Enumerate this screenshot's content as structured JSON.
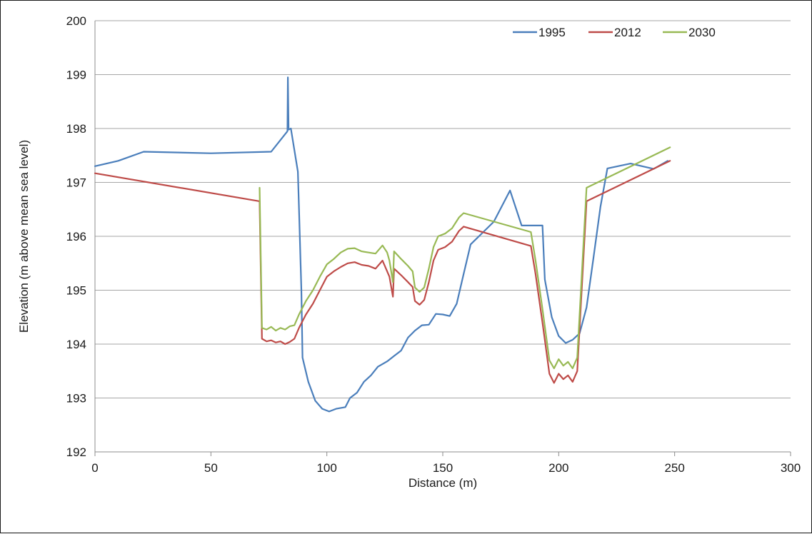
{
  "chart_data": {
    "type": "line",
    "xlabel": "Distance (m)",
    "ylabel": "Elevation (m above mean sea level)",
    "xlim": [
      0,
      300
    ],
    "ylim": [
      192,
      200
    ],
    "x_ticks": [
      0,
      50,
      100,
      150,
      200,
      250,
      300
    ],
    "y_ticks": [
      192,
      193,
      194,
      195,
      196,
      197,
      198,
      199,
      200
    ],
    "grid": "horizontal",
    "legend_position": "top-right",
    "series": [
      {
        "name": "1995",
        "color": "#4a7ebb",
        "points": [
          [
            0,
            197.3
          ],
          [
            10,
            197.4
          ],
          [
            21,
            197.57
          ],
          [
            50,
            197.54
          ],
          [
            76,
            197.57
          ],
          [
            83,
            197.95
          ],
          [
            83.2,
            198.95
          ],
          [
            83.5,
            197.98
          ],
          [
            84.5,
            198.0
          ],
          [
            86,
            197.6
          ],
          [
            87.5,
            197.2
          ],
          [
            88,
            196.5
          ],
          [
            89,
            195.0
          ],
          [
            89.5,
            193.75
          ],
          [
            92,
            193.3
          ],
          [
            95,
            192.95
          ],
          [
            98,
            192.8
          ],
          [
            101,
            192.75
          ],
          [
            104,
            192.8
          ],
          [
            108,
            192.83
          ],
          [
            110,
            193.0
          ],
          [
            113,
            193.1
          ],
          [
            116,
            193.3
          ],
          [
            119,
            193.42
          ],
          [
            122,
            193.58
          ],
          [
            126,
            193.68
          ],
          [
            129,
            193.78
          ],
          [
            132,
            193.88
          ],
          [
            135,
            194.12
          ],
          [
            138,
            194.25
          ],
          [
            141,
            194.35
          ],
          [
            144,
            194.36
          ],
          [
            147,
            194.56
          ],
          [
            150,
            194.55
          ],
          [
            153,
            194.52
          ],
          [
            156,
            194.75
          ],
          [
            159,
            195.3
          ],
          [
            162,
            195.85
          ],
          [
            167,
            196.06
          ],
          [
            172,
            196.27
          ],
          [
            179,
            196.85
          ],
          [
            184,
            196.2
          ],
          [
            193,
            196.2
          ],
          [
            194,
            195.2
          ],
          [
            197,
            194.5
          ],
          [
            200,
            194.15
          ],
          [
            203,
            194.02
          ],
          [
            206,
            194.08
          ],
          [
            209,
            194.2
          ],
          [
            212,
            194.68
          ],
          [
            215,
            195.6
          ],
          [
            218,
            196.55
          ],
          [
            221,
            197.26
          ],
          [
            231,
            197.35
          ],
          [
            241,
            197.25
          ],
          [
            247,
            197.4
          ]
        ]
      },
      {
        "name": "2012",
        "color": "#be4b48",
        "points": [
          [
            0,
            197.17
          ],
          [
            71,
            196.65
          ],
          [
            72,
            194.1
          ],
          [
            74,
            194.05
          ],
          [
            76,
            194.07
          ],
          [
            78,
            194.03
          ],
          [
            80,
            194.05
          ],
          [
            82,
            194.0
          ],
          [
            84,
            194.04
          ],
          [
            86,
            194.1
          ],
          [
            88,
            194.3
          ],
          [
            91,
            194.55
          ],
          [
            94,
            194.75
          ],
          [
            97,
            195.0
          ],
          [
            100,
            195.25
          ],
          [
            103,
            195.35
          ],
          [
            106,
            195.43
          ],
          [
            109,
            195.5
          ],
          [
            112,
            195.52
          ],
          [
            115,
            195.47
          ],
          [
            118,
            195.45
          ],
          [
            121,
            195.4
          ],
          [
            124,
            195.55
          ],
          [
            126,
            195.35
          ],
          [
            127,
            195.25
          ],
          [
            128.5,
            194.88
          ],
          [
            129,
            195.4
          ],
          [
            132,
            195.28
          ],
          [
            135,
            195.15
          ],
          [
            137,
            195.06
          ],
          [
            138,
            194.8
          ],
          [
            140,
            194.73
          ],
          [
            142,
            194.82
          ],
          [
            144,
            195.15
          ],
          [
            146,
            195.55
          ],
          [
            148,
            195.75
          ],
          [
            151,
            195.8
          ],
          [
            154,
            195.9
          ],
          [
            157,
            196.1
          ],
          [
            159,
            196.18
          ],
          [
            188,
            195.82
          ],
          [
            190,
            195.3
          ],
          [
            193,
            194.4
          ],
          [
            196,
            193.45
          ],
          [
            198,
            193.28
          ],
          [
            200,
            193.45
          ],
          [
            202,
            193.35
          ],
          [
            204,
            193.42
          ],
          [
            206,
            193.3
          ],
          [
            208,
            193.5
          ],
          [
            212,
            196.65
          ],
          [
            248,
            197.4
          ]
        ]
      },
      {
        "name": "2030",
        "color": "#98b954",
        "points": [
          [
            71,
            196.9
          ],
          [
            72,
            194.3
          ],
          [
            74,
            194.27
          ],
          [
            76,
            194.32
          ],
          [
            78,
            194.25
          ],
          [
            80,
            194.3
          ],
          [
            82,
            194.27
          ],
          [
            84,
            194.33
          ],
          [
            86,
            194.35
          ],
          [
            88,
            194.55
          ],
          [
            91,
            194.8
          ],
          [
            94,
            195.0
          ],
          [
            97,
            195.25
          ],
          [
            100,
            195.48
          ],
          [
            103,
            195.58
          ],
          [
            106,
            195.7
          ],
          [
            109,
            195.77
          ],
          [
            112,
            195.78
          ],
          [
            115,
            195.72
          ],
          [
            118,
            195.7
          ],
          [
            121,
            195.68
          ],
          [
            124,
            195.83
          ],
          [
            126,
            195.7
          ],
          [
            127,
            195.55
          ],
          [
            128.5,
            195.15
          ],
          [
            129,
            195.72
          ],
          [
            132,
            195.58
          ],
          [
            135,
            195.45
          ],
          [
            137,
            195.35
          ],
          [
            138,
            195.05
          ],
          [
            140,
            194.97
          ],
          [
            142,
            195.05
          ],
          [
            144,
            195.4
          ],
          [
            146,
            195.8
          ],
          [
            148,
            196.0
          ],
          [
            151,
            196.05
          ],
          [
            154,
            196.15
          ],
          [
            157,
            196.35
          ],
          [
            159,
            196.43
          ],
          [
            188,
            196.08
          ],
          [
            190,
            195.55
          ],
          [
            193,
            194.65
          ],
          [
            196,
            193.7
          ],
          [
            198,
            193.55
          ],
          [
            200,
            193.72
          ],
          [
            202,
            193.6
          ],
          [
            204,
            193.67
          ],
          [
            206,
            193.55
          ],
          [
            208,
            193.75
          ],
          [
            212,
            196.9
          ],
          [
            248,
            197.65
          ]
        ]
      }
    ]
  }
}
